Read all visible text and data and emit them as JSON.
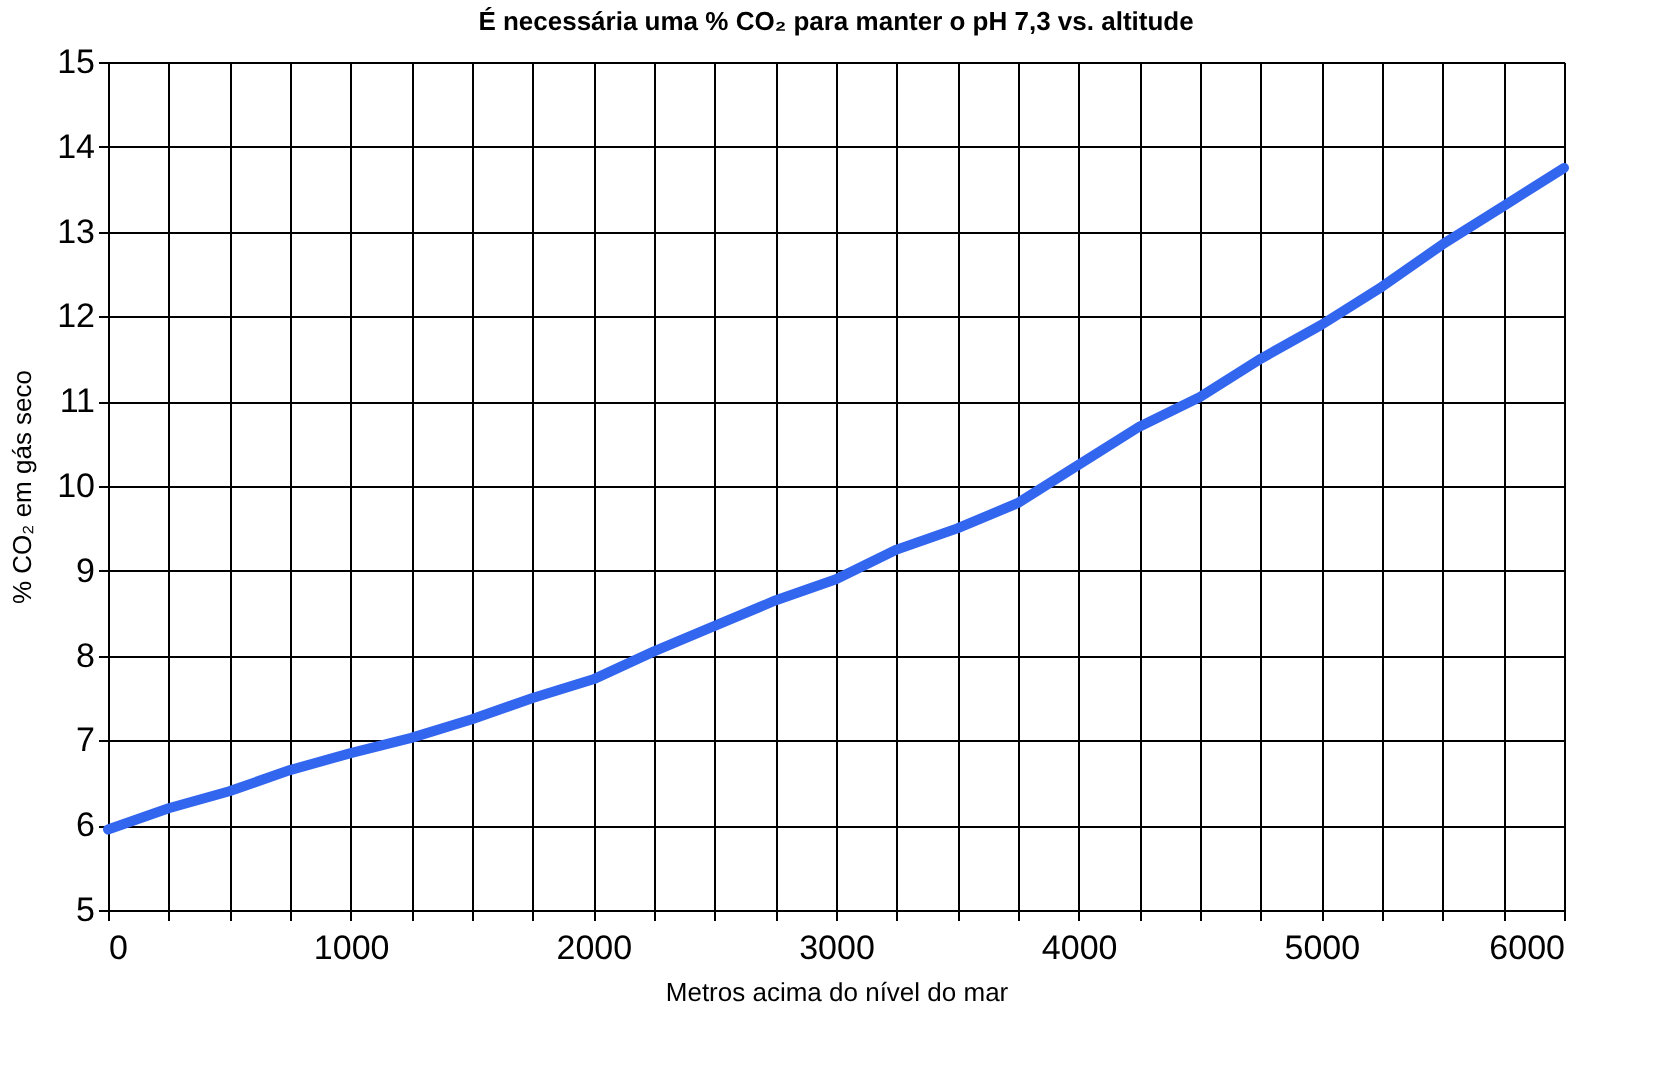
{
  "chart_data": {
    "type": "line",
    "title": "É necessária uma % CO₂ para manter o pH 7,3 vs. altitude",
    "xlabel": "Metros acima do nível do mar",
    "ylabel": "% CO₂ em gás seco",
    "x": [
      0,
      250,
      500,
      750,
      1000,
      1250,
      1500,
      1750,
      2000,
      2250,
      2500,
      2750,
      3000,
      3250,
      3500,
      3750,
      4000,
      4250,
      4500,
      4750,
      5000,
      5250,
      5500,
      5750,
      6000
    ],
    "series": [
      {
        "color": "#3366ee",
        "values": [
          5.95,
          6.2,
          6.4,
          6.65,
          6.85,
          7.03,
          7.25,
          7.5,
          7.72,
          8.05,
          8.35,
          8.65,
          8.9,
          9.25,
          9.5,
          9.8,
          10.25,
          10.7,
          11.05,
          11.5,
          11.9,
          12.35,
          12.85,
          13.3,
          13.75
        ]
      }
    ],
    "xlim": [
      0,
      6000
    ],
    "ylim": [
      5,
      15
    ],
    "xticks": [
      0,
      {
        "value": 250,
        "label": null
      },
      {
        "value": 500,
        "label": null
      },
      {
        "value": 750,
        "label": null
      },
      1000,
      {
        "value": 1250,
        "label": null
      },
      {
        "value": 1500,
        "label": null
      },
      {
        "value": 1750,
        "label": null
      },
      2000,
      {
        "value": 2250,
        "label": null
      },
      {
        "value": 2500,
        "label": null
      },
      {
        "value": 2750,
        "label": null
      },
      3000,
      {
        "value": 3250,
        "label": null
      },
      {
        "value": 3500,
        "label": null
      },
      {
        "value": 3750,
        "label": null
      },
      4000,
      {
        "value": 4250,
        "label": null
      },
      {
        "value": 4500,
        "label": null
      },
      {
        "value": 4750,
        "label": null
      },
      5000,
      {
        "value": 5250,
        "label": null
      },
      {
        "value": 5500,
        "label": null
      },
      {
        "value": 5750,
        "label": null
      },
      6000
    ],
    "yticks": [
      5,
      6,
      7,
      8,
      9,
      10,
      11,
      12,
      13,
      14,
      15
    ],
    "grid": true,
    "legend": false,
    "marker": "none",
    "line_style": "solid"
  }
}
